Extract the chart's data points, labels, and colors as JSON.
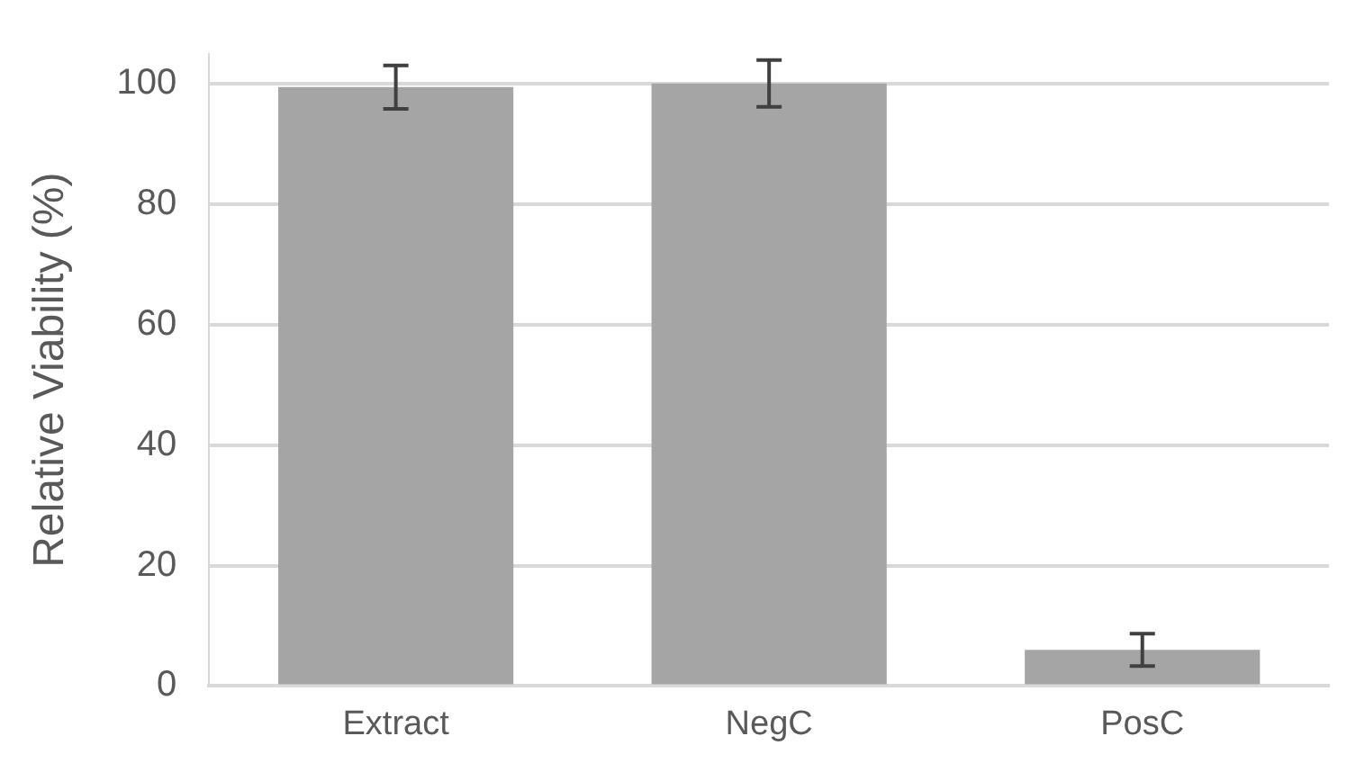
{
  "chart_data": {
    "type": "bar",
    "ylabel": "Relative Viability (%)",
    "categories": [
      "Extract",
      "NegC",
      "PosC"
    ],
    "values": [
      99.5,
      100.1,
      6.0
    ],
    "errors": [
      3.6,
      3.9,
      2.7
    ],
    "color": "#a5a5a5",
    "ylim": [
      0,
      105
    ],
    "yticks": [
      0,
      20,
      40,
      60,
      80,
      100
    ],
    "grid": "y",
    "legend": false
  }
}
